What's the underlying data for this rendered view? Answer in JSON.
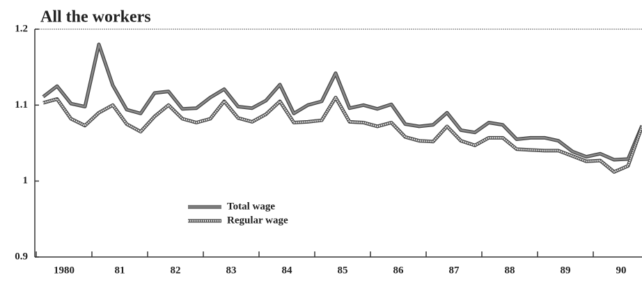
{
  "chart_data": {
    "type": "line",
    "title": "All the workers",
    "categories": [
      "1980",
      null,
      null,
      null,
      "81",
      null,
      null,
      null,
      "82",
      null,
      null,
      null,
      "83",
      null,
      null,
      null,
      "84",
      null,
      null,
      null,
      "85",
      null,
      null,
      null,
      "86",
      null,
      null,
      null,
      "87",
      null,
      null,
      null,
      "88",
      null,
      null,
      null,
      "89",
      null,
      null,
      null,
      "90",
      null,
      null,
      null
    ],
    "series": [
      {
        "name": "Total wage",
        "color": "#8a8a8a",
        "values": [
          1.111,
          1.125,
          1.102,
          1.098,
          1.18,
          1.126,
          1.094,
          1.089,
          1.116,
          1.118,
          1.095,
          1.096,
          1.11,
          1.121,
          1.098,
          1.096,
          1.106,
          1.127,
          1.089,
          1.1,
          1.105,
          1.142,
          1.096,
          1.1,
          1.095,
          1.101,
          1.075,
          1.072,
          1.074,
          1.09,
          1.067,
          1.064,
          1.077,
          1.074,
          1.055,
          1.057,
          1.057,
          1.053,
          1.039,
          1.032,
          1.036,
          1.028,
          1.029,
          1.073
        ]
      },
      {
        "name": "Regular wage",
        "color": "#d8d8d8",
        "values": [
          1.103,
          1.108,
          1.082,
          1.073,
          1.09,
          1.1,
          1.075,
          1.065,
          1.085,
          1.1,
          1.082,
          1.077,
          1.082,
          1.105,
          1.083,
          1.078,
          1.088,
          1.105,
          1.077,
          1.078,
          1.08,
          1.11,
          1.078,
          1.077,
          1.072,
          1.077,
          1.058,
          1.053,
          1.052,
          1.072,
          1.053,
          1.047,
          1.057,
          1.057,
          1.042,
          1.041,
          1.04,
          1.04,
          1.033,
          1.026,
          1.027,
          1.012,
          1.02,
          1.072
        ]
      }
    ],
    "ylim": [
      0.9,
      1.2
    ],
    "yticks": [
      0.9,
      1,
      1.1,
      1.2
    ]
  }
}
